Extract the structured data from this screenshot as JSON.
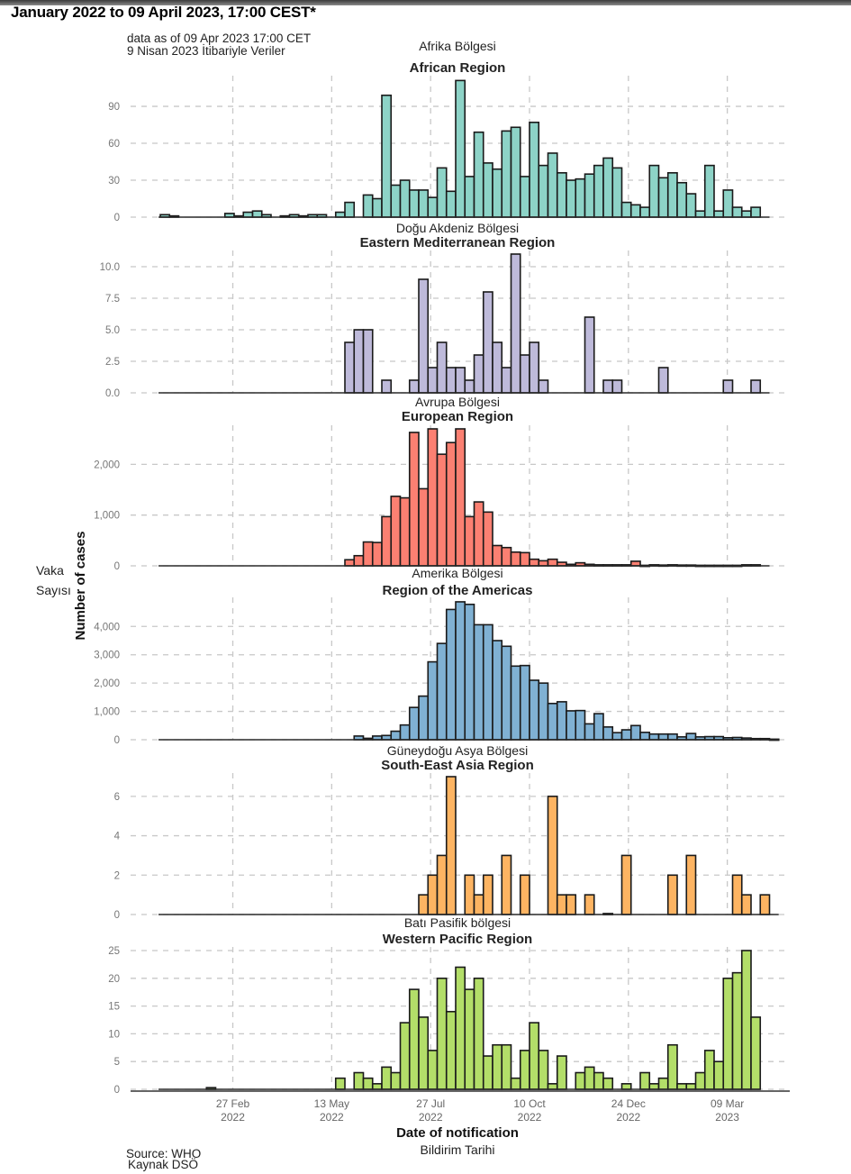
{
  "document": {
    "title": "January 2022 to 09 April 2023, 17:00 CEST*",
    "data_note_en": "data as of 09 Apr 2023 17:00 CET",
    "data_note_tr": "9 Nisan 2023 İtibariyle Veriler",
    "source_en": "Source: WHO",
    "source_tr": "Kaynak DSÖ",
    "y_axis_title_en": "Number of cases",
    "y_axis_title_tr_line1": "Vaka",
    "y_axis_title_tr_line2": "Sayısı",
    "x_axis_title_en": "Date of notification",
    "x_axis_title_tr": "Bildirim Tarihi"
  },
  "chart_data": {
    "type": "bar",
    "title": "January 2022 to 09 April 2023, 17:00 CEST*",
    "xlabel": "Date of notification",
    "ylabel": "Number of cases",
    "bin": "weekly",
    "first_week_start": "2022-01-03",
    "x_tick_labels": [
      {
        "date": "2022-02-27",
        "line1": "27 Feb",
        "line2": "2022"
      },
      {
        "date": "2022-05-13",
        "line1": "13 May",
        "line2": "2022"
      },
      {
        "date": "2022-07-27",
        "line1": "27 Jul",
        "line2": "2022"
      },
      {
        "date": "2022-10-10",
        "line1": "10 Oct",
        "line2": "2022"
      },
      {
        "date": "2022-12-24",
        "line1": "24 Dec",
        "line2": "2022"
      },
      {
        "date": "2023-03-09",
        "line1": "09 Mar",
        "line2": "2023"
      }
    ],
    "grid": true,
    "legend": "none",
    "panels": [
      {
        "name": "African Region",
        "name_tr": "Afrika Bölgesi",
        "color": "#8dd3c7",
        "ylim": [
          0,
          112
        ],
        "yticks": [
          {
            "v": 0,
            "l": "0"
          },
          {
            "v": 30,
            "l": "30"
          },
          {
            "v": 60,
            "l": "60"
          },
          {
            "v": 90,
            "l": "90"
          }
        ],
        "values": [
          2,
          1,
          0,
          0,
          0,
          0,
          0,
          3,
          1,
          4,
          5,
          2,
          0,
          1,
          2,
          1,
          2,
          2,
          0,
          4,
          12,
          0,
          18,
          15,
          99,
          26,
          30,
          22,
          22,
          16,
          40,
          21,
          111,
          33,
          69,
          44,
          39,
          70,
          73,
          33,
          77,
          42,
          52,
          36,
          30,
          31,
          35,
          42,
          48,
          40,
          12,
          10,
          8,
          42,
          32,
          36,
          28,
          19,
          5,
          42,
          5,
          22,
          8,
          5,
          8,
          0
        ]
      },
      {
        "name": "Eastern Mediterranean Region",
        "name_tr": "Doğu Akdeniz Bölgesi",
        "color": "#bebada",
        "ylim": [
          0,
          11
        ],
        "yticks": [
          {
            "v": 0,
            "l": "0.0"
          },
          {
            "v": 2.5,
            "l": "2.5"
          },
          {
            "v": 5,
            "l": "5.0"
          },
          {
            "v": 7.5,
            "l": "7.5"
          },
          {
            "v": 10,
            "l": "10.0"
          }
        ],
        "values": [
          0,
          0,
          0,
          0,
          0,
          0,
          0,
          0,
          0,
          0,
          0,
          0,
          0,
          0,
          0,
          0,
          0,
          0,
          0,
          0,
          4,
          5,
          5,
          0,
          1,
          0,
          0,
          1,
          9,
          2,
          4,
          2,
          2,
          1,
          3,
          8,
          4,
          2,
          11,
          3,
          4,
          1,
          0,
          0,
          0,
          0,
          6,
          0,
          1,
          1,
          0,
          0,
          0,
          0,
          2,
          0,
          0,
          0,
          0,
          0,
          0,
          1,
          0,
          0,
          1,
          0
        ]
      },
      {
        "name": "European Region",
        "name_tr": "Avrupa Bölgesi",
        "color": "#fb8072",
        "ylim": [
          0,
          2700
        ],
        "yticks": [
          {
            "v": 0,
            "l": "0"
          },
          {
            "v": 1000,
            "l": "1,000"
          },
          {
            "v": 2000,
            "l": "2,000"
          }
        ],
        "values": [
          0,
          0,
          0,
          0,
          0,
          0,
          0,
          0,
          0,
          0,
          0,
          0,
          0,
          0,
          0,
          0,
          0,
          0,
          0,
          0,
          120,
          200,
          470,
          460,
          970,
          1370,
          1340,
          2630,
          1520,
          2700,
          2200,
          2430,
          2700,
          970,
          1260,
          1060,
          400,
          360,
          270,
          260,
          130,
          100,
          130,
          70,
          30,
          60,
          30,
          20,
          20,
          20,
          20,
          90,
          10,
          20,
          15,
          20,
          15,
          15,
          10,
          10,
          10,
          10,
          10,
          20,
          20,
          0
        ]
      },
      {
        "name": "Region of the Americas",
        "name_tr": "Amerika Bölgesi",
        "color": "#80b1d3",
        "ylim": [
          0,
          4900
        ],
        "yticks": [
          {
            "v": 0,
            "l": "0"
          },
          {
            "v": 1000,
            "l": "1,000"
          },
          {
            "v": 2000,
            "l": "2,000"
          },
          {
            "v": 3000,
            "l": "3,000"
          },
          {
            "v": 4000,
            "l": "4,000"
          }
        ],
        "values": [
          0,
          0,
          0,
          0,
          0,
          0,
          0,
          0,
          0,
          0,
          0,
          0,
          0,
          0,
          0,
          0,
          0,
          0,
          0,
          0,
          0,
          130,
          50,
          130,
          150,
          300,
          520,
          1140,
          1540,
          2750,
          3400,
          4600,
          4870,
          4780,
          4060,
          4060,
          3500,
          3300,
          2600,
          2620,
          2100,
          2000,
          1280,
          1340,
          1020,
          1030,
          560,
          920,
          450,
          250,
          350,
          500,
          260,
          200,
          200,
          200,
          100,
          220,
          100,
          110,
          110,
          70,
          80,
          60,
          40,
          40,
          20
        ]
      },
      {
        "name": "South-East Asia Region",
        "name_tr": "Güneydoğu Asya Bölgesi",
        "color": "#fdb462",
        "ylim": [
          0,
          7
        ],
        "yticks": [
          {
            "v": 0,
            "l": "0"
          },
          {
            "v": 2,
            "l": "2"
          },
          {
            "v": 4,
            "l": "4"
          },
          {
            "v": 6,
            "l": "6"
          }
        ],
        "values": [
          0,
          0,
          0,
          0,
          0,
          0,
          0,
          0,
          0,
          0,
          0,
          0,
          0,
          0,
          0,
          0,
          0,
          0,
          0,
          0,
          0,
          0,
          0,
          0,
          0,
          0,
          0,
          0,
          1,
          2,
          3,
          7,
          0,
          2,
          1,
          2,
          0,
          3,
          0,
          2,
          0,
          0,
          6,
          1,
          1,
          0,
          1,
          0,
          0.05,
          0,
          3,
          0,
          0,
          0,
          0,
          2,
          0,
          3,
          0,
          0,
          0,
          0,
          2,
          1,
          0,
          1,
          0
        ]
      },
      {
        "name": "Western Pacific Region",
        "name_tr": "Batı Pasifik bölgesi",
        "color": "#b3de69",
        "ylim": [
          0,
          25
        ],
        "yticks": [
          {
            "v": 0,
            "l": "0"
          },
          {
            "v": 5,
            "l": "5"
          },
          {
            "v": 10,
            "l": "10"
          },
          {
            "v": 15,
            "l": "15"
          },
          {
            "v": 20,
            "l": "20"
          },
          {
            "v": 25,
            "l": "25"
          }
        ],
        "values": [
          0,
          0,
          0,
          0,
          0,
          0.3,
          0,
          0,
          0,
          0,
          0,
          0,
          0,
          0,
          0,
          0,
          0,
          0,
          0,
          2,
          0,
          3,
          2,
          1,
          4,
          3,
          12,
          18,
          13,
          7,
          20,
          14,
          22,
          18,
          20,
          6,
          8,
          8,
          2,
          7,
          12,
          7,
          1,
          6,
          0,
          3,
          4,
          3,
          2,
          0,
          1,
          0,
          3,
          1,
          2,
          8,
          1,
          1,
          3,
          7,
          5,
          20,
          21,
          25,
          13
        ]
      }
    ]
  }
}
